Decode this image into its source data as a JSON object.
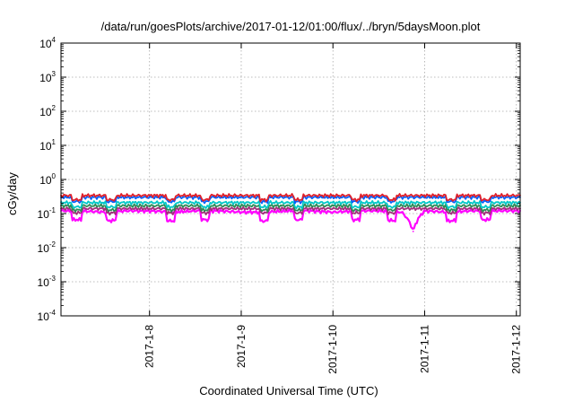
{
  "chart_data": {
    "type": "line",
    "title": "/data/run/goesPlots/archive/2017-01-12/01:00/flux/../bryn/5daysMoon.plot",
    "xlabel": "Coordinated Universal Time (UTC)",
    "ylabel": "cGy/day",
    "yscale": "log",
    "ylim": [
      0.0001,
      10000
    ],
    "xlim": [
      "2017-01-07 00:50",
      "2017-01-12 01:00"
    ],
    "grid": true,
    "x_ticks": [
      {
        "label": "2017-1-8",
        "value": "2017-01-08"
      },
      {
        "label": "2017-1-9",
        "value": "2017-01-09"
      },
      {
        "label": "2017-1-10",
        "value": "2017-01-10"
      },
      {
        "label": "2017-1-11",
        "value": "2017-01-11"
      },
      {
        "label": "2017-1-12",
        "value": "2017-01-12"
      }
    ],
    "y_ticks": [
      {
        "base": "10",
        "exp": "-4",
        "value": 0.0001
      },
      {
        "base": "10",
        "exp": "-3",
        "value": 0.001
      },
      {
        "base": "10",
        "exp": "-2",
        "value": 0.01
      },
      {
        "base": "10",
        "exp": "-1",
        "value": 0.1
      },
      {
        "base": "10",
        "exp": "0",
        "value": 1
      },
      {
        "base": "10",
        "exp": "1",
        "value": 10
      },
      {
        "base": "10",
        "exp": "2",
        "value": 100
      },
      {
        "base": "10",
        "exp": "3",
        "value": 1000
      },
      {
        "base": "10",
        "exp": "4",
        "value": 10000
      }
    ],
    "dip_times": [
      "2017-01-07 05:00",
      "2017-01-07 14:00",
      "2017-01-08 05:30",
      "2017-01-08 14:30",
      "2017-01-09 06:00",
      "2017-01-09 15:00",
      "2017-01-10 06:00",
      "2017-01-10 15:30",
      "2017-01-11 07:00",
      "2017-01-11 16:00"
    ],
    "series": [
      {
        "color": "#ff00ff",
        "values": [
          [
            "2017-01-07 00:50",
            0.12
          ],
          [
            "2017-01-07 06:00",
            0.12
          ],
          [
            "2017-01-07 12:00",
            0.11
          ],
          [
            "2017-01-07 18:00",
            0.12
          ],
          [
            "2017-01-08 00:00",
            0.12
          ],
          [
            "2017-01-08 06:00",
            0.11
          ],
          [
            "2017-01-08 12:00",
            0.12
          ],
          [
            "2017-01-08 18:00",
            0.12
          ],
          [
            "2017-01-09 00:00",
            0.11
          ],
          [
            "2017-01-09 06:00",
            0.11
          ],
          [
            "2017-01-09 12:00",
            0.12
          ],
          [
            "2017-01-09 18:00",
            0.12
          ],
          [
            "2017-01-10 00:00",
            0.11
          ],
          [
            "2017-01-10 06:00",
            0.12
          ],
          [
            "2017-01-10 12:00",
            0.12
          ],
          [
            "2017-01-10 18:00",
            0.11
          ],
          [
            "2017-01-10 21:00",
            0.03
          ],
          [
            "2017-01-11 00:00",
            0.12
          ],
          [
            "2017-01-11 06:00",
            0.11
          ],
          [
            "2017-01-11 12:00",
            0.12
          ],
          [
            "2017-01-11 18:00",
            0.12
          ],
          [
            "2017-01-12 01:00",
            0.12
          ]
        ]
      },
      {
        "color": "#a0307a",
        "values": [
          [
            "2017-01-07 00:50",
            0.14
          ],
          [
            "2017-01-07 12:00",
            0.14
          ],
          [
            "2017-01-08 00:00",
            0.14
          ],
          [
            "2017-01-08 12:00",
            0.14
          ],
          [
            "2017-01-09 00:00",
            0.14
          ],
          [
            "2017-01-09 12:00",
            0.14
          ],
          [
            "2017-01-10 00:00",
            0.14
          ],
          [
            "2017-01-10 12:00",
            0.14
          ],
          [
            "2017-01-11 00:00",
            0.14
          ],
          [
            "2017-01-11 12:00",
            0.14
          ],
          [
            "2017-01-12 01:00",
            0.14
          ]
        ]
      },
      {
        "color": "#2e8b57",
        "values": [
          [
            "2017-01-07 00:50",
            0.17
          ],
          [
            "2017-01-07 12:00",
            0.17
          ],
          [
            "2017-01-08 00:00",
            0.17
          ],
          [
            "2017-01-08 12:00",
            0.17
          ],
          [
            "2017-01-09 00:00",
            0.17
          ],
          [
            "2017-01-09 12:00",
            0.17
          ],
          [
            "2017-01-10 00:00",
            0.17
          ],
          [
            "2017-01-10 12:00",
            0.17
          ],
          [
            "2017-01-11 00:00",
            0.17
          ],
          [
            "2017-01-11 12:00",
            0.17
          ],
          [
            "2017-01-12 01:00",
            0.17
          ]
        ]
      },
      {
        "color": "#00c8c8",
        "values": [
          [
            "2017-01-07 00:50",
            0.21
          ],
          [
            "2017-01-07 12:00",
            0.21
          ],
          [
            "2017-01-08 00:00",
            0.21
          ],
          [
            "2017-01-08 12:00",
            0.21
          ],
          [
            "2017-01-09 00:00",
            0.21
          ],
          [
            "2017-01-09 12:00",
            0.21
          ],
          [
            "2017-01-10 00:00",
            0.21
          ],
          [
            "2017-01-10 12:00",
            0.21
          ],
          [
            "2017-01-11 00:00",
            0.21
          ],
          [
            "2017-01-11 12:00",
            0.21
          ],
          [
            "2017-01-12 01:00",
            0.21
          ]
        ]
      },
      {
        "color": "#0060ff",
        "values": [
          [
            "2017-01-07 00:50",
            0.3
          ],
          [
            "2017-01-07 12:00",
            0.3
          ],
          [
            "2017-01-08 00:00",
            0.3
          ],
          [
            "2017-01-08 12:00",
            0.3
          ],
          [
            "2017-01-09 00:00",
            0.3
          ],
          [
            "2017-01-09 12:00",
            0.3
          ],
          [
            "2017-01-10 00:00",
            0.3
          ],
          [
            "2017-01-10 12:00",
            0.3
          ],
          [
            "2017-01-11 00:00",
            0.3
          ],
          [
            "2017-01-11 12:00",
            0.3
          ],
          [
            "2017-01-12 01:00",
            0.3
          ]
        ]
      },
      {
        "color": "#e0202a",
        "values": [
          [
            "2017-01-07 00:50",
            0.34
          ],
          [
            "2017-01-07 12:00",
            0.34
          ],
          [
            "2017-01-08 00:00",
            0.34
          ],
          [
            "2017-01-08 12:00",
            0.34
          ],
          [
            "2017-01-09 00:00",
            0.34
          ],
          [
            "2017-01-09 12:00",
            0.34
          ],
          [
            "2017-01-10 00:00",
            0.34
          ],
          [
            "2017-01-10 12:00",
            0.34
          ],
          [
            "2017-01-11 00:00",
            0.34
          ],
          [
            "2017-01-11 12:00",
            0.34
          ],
          [
            "2017-01-12 01:00",
            0.34
          ]
        ]
      }
    ]
  }
}
